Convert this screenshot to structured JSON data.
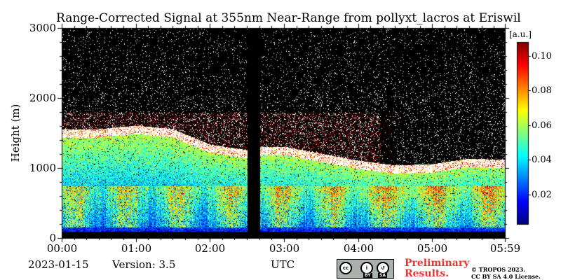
{
  "title": "Range-Corrected Signal at 355nm Near-Range from pollyxt_lacros at Eriswil",
  "date": "2023-01-15",
  "version": "Version: 3.5",
  "footer": {
    "preliminary_line1": "Preliminary",
    "preliminary_line2": "Results.",
    "copyright_line1": "© TROPOS 2023.",
    "copyright_line2": "CC BY SA 4.0 License.",
    "license_badge_labels": [
      "cc",
      "BY",
      "SA"
    ]
  },
  "colors": {
    "background_no_signal": "#000000",
    "accent_preliminary": "#ee3333"
  },
  "chart_data": {
    "type": "heatmap",
    "title": "Range-Corrected Signal at 355nm Near-Range from pollyxt_lacros at Eriswil",
    "xlabel": "UTC",
    "ylabel": "Height (m)",
    "x_ticks": [
      "00:00",
      "01:00",
      "02:00",
      "03:00",
      "04:00",
      "05:00",
      "05:59"
    ],
    "x_range_hours": [
      0,
      5.983
    ],
    "y_ticks": [
      0,
      1000,
      2000,
      3000
    ],
    "ylim": [
      0,
      3000
    ],
    "colorbar": {
      "label": "[a.u.]",
      "ticks": [
        0.02,
        0.04,
        0.06,
        0.08,
        0.1
      ],
      "range": [
        0.003,
        0.108
      ],
      "colormap": "jet"
    },
    "data_gap_hours": [
      2.5,
      2.67
    ],
    "features": [
      {
        "name": "boundary layer top",
        "times_h": [
          0.0,
          0.5,
          1.0,
          1.5,
          2.0,
          2.5,
          2.67,
          3.0,
          3.5,
          4.0,
          4.5,
          5.0,
          5.5,
          5.98
        ],
        "heights_m": [
          1500,
          1500,
          1550,
          1500,
          1280,
          1200,
          1250,
          1250,
          1150,
          1050,
          980,
          1000,
          1080,
          1060
        ]
      },
      {
        "name": "near-surface high signal",
        "height_range_m": [
          100,
          700
        ]
      },
      {
        "name": "blind zone",
        "height_range_m": [
          0,
          90
        ]
      }
    ]
  }
}
